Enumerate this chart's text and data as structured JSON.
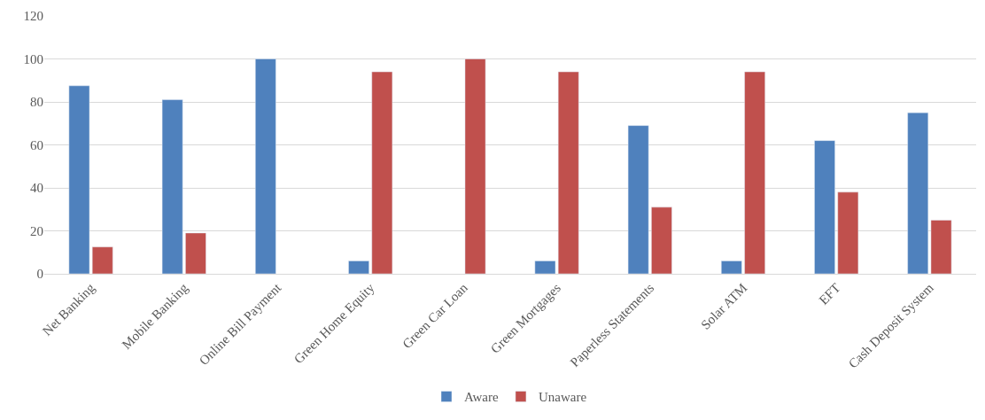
{
  "chart_data": {
    "type": "bar",
    "categories": [
      "Net Banking",
      "Mobile Banking",
      "Online Bill Payment",
      "Green Home Equity",
      "Green Car Loan",
      "Green Mortgages",
      "Paperless Statements",
      "Solar ATM",
      "EFT",
      "Cash Deposit System"
    ],
    "series": [
      {
        "name": "Aware",
        "color": "#4f81bd",
        "values": [
          87.5,
          81,
          100,
          6,
          null,
          6,
          69,
          6,
          62,
          75
        ]
      },
      {
        "name": "Unaware",
        "color": "#c0504d",
        "values": [
          12.5,
          19,
          null,
          94,
          100,
          94,
          31,
          94,
          38,
          25
        ]
      }
    ],
    "ylim": [
      0,
      120
    ],
    "yticks": [
      0,
      20,
      40,
      60,
      80,
      100,
      120
    ],
    "grid": "y",
    "legend": "bottom"
  }
}
